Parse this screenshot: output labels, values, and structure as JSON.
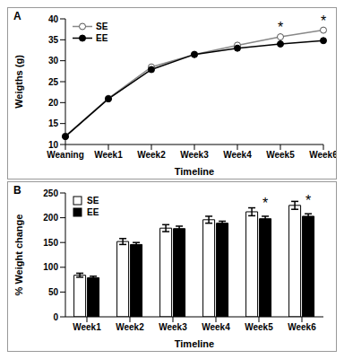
{
  "chart_data": [
    {
      "type": "line",
      "title": "A",
      "x_label": "Timeline",
      "y_label": "Weigths (g)",
      "categories": [
        "Weaning",
        "Week1",
        "Week2",
        "Week3",
        "Week4",
        "Week5",
        "Week6"
      ],
      "series": [
        {
          "name": "SE",
          "color": "#888888",
          "marker": "open_circle",
          "values": [
            12,
            21,
            28.5,
            31.5,
            33.7,
            35.7,
            37.3
          ]
        },
        {
          "name": "EE",
          "color": "#000000",
          "marker": "circle",
          "values": [
            11.9,
            20.9,
            27.9,
            31.5,
            33,
            34,
            34.8
          ]
        }
      ],
      "ylim": [
        10,
        40
      ],
      "yticks": [
        10,
        15,
        20,
        25,
        30,
        35,
        40
      ],
      "grid": false,
      "legend": "upper left",
      "annotations": [
        {
          "text": "*",
          "category": "Week5",
          "series": "SE"
        },
        {
          "text": "*",
          "category": "Week6",
          "series": "SE"
        }
      ]
    },
    {
      "type": "bar",
      "title": "B",
      "x_label": "Timeline",
      "y_label": "% Weight change",
      "categories": [
        "Week1",
        "Week2",
        "Week3",
        "Week4",
        "Week5",
        "Week6"
      ],
      "series": [
        {
          "name": "SE",
          "color": "#ffffff",
          "values": [
            84,
            152,
            179,
            196,
            212,
            225
          ],
          "errors": [
            4,
            6,
            7,
            7,
            8,
            8
          ]
        },
        {
          "name": "EE",
          "color": "#000000",
          "values": [
            79,
            146,
            178,
            189,
            198,
            203
          ],
          "errors": [
            3,
            4,
            5,
            4,
            5,
            5
          ]
        }
      ],
      "ylim": [
        0,
        250
      ],
      "yticks": [
        0,
        50,
        100,
        150,
        200,
        250
      ],
      "grid": false,
      "legend": "upper left",
      "annotations": [
        {
          "text": "*",
          "category": "Week5",
          "series": "EE"
        },
        {
          "text": "*",
          "category": "Week6",
          "series": "EE"
        }
      ]
    }
  ]
}
